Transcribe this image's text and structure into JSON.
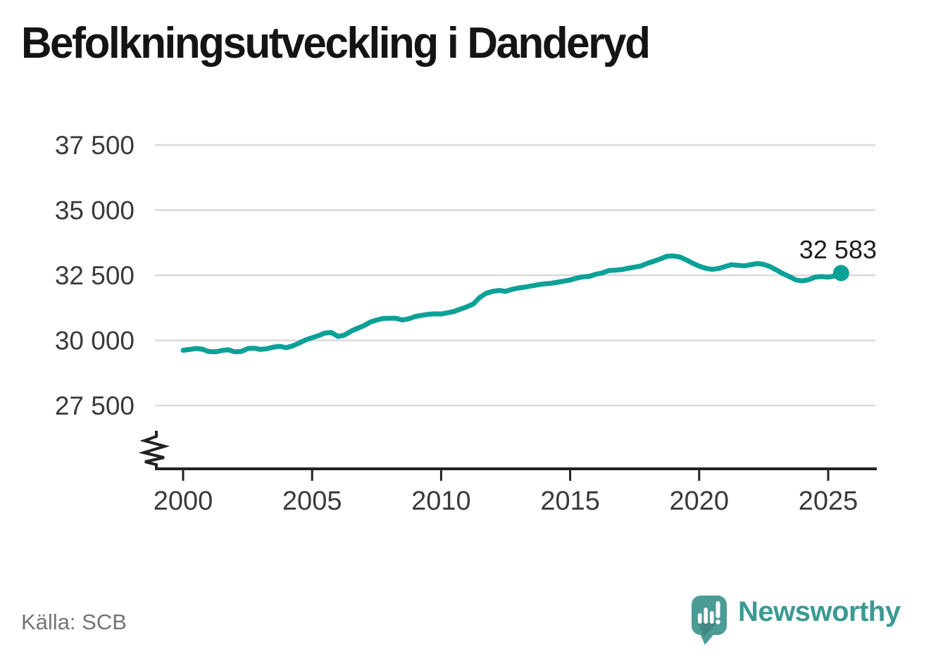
{
  "title": "Befolkningsutveckling i Danderyd",
  "source_label": "Källa: SCB",
  "branding": {
    "wordmark": "Newsworthy",
    "logo_icon": "speech-bubble-with-bar-chart-and-exclamation"
  },
  "colors": {
    "line": "#0ba197",
    "grid": "#d9d9d9",
    "axis": "#222222",
    "tick_label": "#3a3a3a",
    "end_label": "#1c1c1c",
    "logo_bubble": "#4c9c96",
    "logo_text": "#3b9a93"
  },
  "chart_data": {
    "type": "line",
    "title": "Befolkningsutveckling i Danderyd",
    "xlabel": "",
    "ylabel": "",
    "grid": "horizontal",
    "legend": "none",
    "broken_y_axis": true,
    "ylim": [
      26800,
      38200
    ],
    "xlim": [
      1998.9,
      2026.9
    ],
    "yticks": [
      {
        "value": 27500,
        "label": "27 500"
      },
      {
        "value": 30000,
        "label": "30 000"
      },
      {
        "value": 32500,
        "label": "32 500"
      },
      {
        "value": 35000,
        "label": "35 000"
      },
      {
        "value": 37500,
        "label": "37 500"
      }
    ],
    "xticks": [
      {
        "value": 2000,
        "label": "2000"
      },
      {
        "value": 2005,
        "label": "2005"
      },
      {
        "value": 2010,
        "label": "2010"
      },
      {
        "value": 2015,
        "label": "2015"
      },
      {
        "value": 2020,
        "label": "2020"
      },
      {
        "value": 2025,
        "label": "2025"
      }
    ],
    "end_point": {
      "x": 2025.5,
      "value": 32583,
      "label": "32 583"
    },
    "series": [
      {
        "points": [
          [
            2000.0,
            29620
          ],
          [
            2000.25,
            29650
          ],
          [
            2000.5,
            29690
          ],
          [
            2000.75,
            29660
          ],
          [
            2001.0,
            29570
          ],
          [
            2001.25,
            29560
          ],
          [
            2001.5,
            29610
          ],
          [
            2001.75,
            29640
          ],
          [
            2002.0,
            29560
          ],
          [
            2002.25,
            29570
          ],
          [
            2002.5,
            29680
          ],
          [
            2002.75,
            29700
          ],
          [
            2003.0,
            29650
          ],
          [
            2003.25,
            29680
          ],
          [
            2003.5,
            29740
          ],
          [
            2003.75,
            29770
          ],
          [
            2004.0,
            29720
          ],
          [
            2004.25,
            29790
          ],
          [
            2004.5,
            29900
          ],
          [
            2004.75,
            30020
          ],
          [
            2005.0,
            30100
          ],
          [
            2005.25,
            30180
          ],
          [
            2005.5,
            30280
          ],
          [
            2005.75,
            30300
          ],
          [
            2006.0,
            30150
          ],
          [
            2006.25,
            30200
          ],
          [
            2006.5,
            30350
          ],
          [
            2006.75,
            30460
          ],
          [
            2007.0,
            30560
          ],
          [
            2007.25,
            30700
          ],
          [
            2007.5,
            30780
          ],
          [
            2007.75,
            30840
          ],
          [
            2008.0,
            30850
          ],
          [
            2008.25,
            30850
          ],
          [
            2008.5,
            30780
          ],
          [
            2008.75,
            30830
          ],
          [
            2009.0,
            30920
          ],
          [
            2009.25,
            30960
          ],
          [
            2009.5,
            31000
          ],
          [
            2009.75,
            31020
          ],
          [
            2010.0,
            31010
          ],
          [
            2010.25,
            31060
          ],
          [
            2010.5,
            31110
          ],
          [
            2010.75,
            31200
          ],
          [
            2011.0,
            31290
          ],
          [
            2011.25,
            31400
          ],
          [
            2011.5,
            31650
          ],
          [
            2011.75,
            31810
          ],
          [
            2012.0,
            31880
          ],
          [
            2012.25,
            31915
          ],
          [
            2012.5,
            31880
          ],
          [
            2012.75,
            31960
          ],
          [
            2013.0,
            32010
          ],
          [
            2013.25,
            32045
          ],
          [
            2013.5,
            32090
          ],
          [
            2013.75,
            32135
          ],
          [
            2014.0,
            32170
          ],
          [
            2014.25,
            32190
          ],
          [
            2014.5,
            32230
          ],
          [
            2014.75,
            32270
          ],
          [
            2015.0,
            32320
          ],
          [
            2015.25,
            32390
          ],
          [
            2015.5,
            32440
          ],
          [
            2015.75,
            32460
          ],
          [
            2016.0,
            32540
          ],
          [
            2016.25,
            32590
          ],
          [
            2016.5,
            32680
          ],
          [
            2016.75,
            32695
          ],
          [
            2017.0,
            32720
          ],
          [
            2017.25,
            32770
          ],
          [
            2017.5,
            32810
          ],
          [
            2017.75,
            32860
          ],
          [
            2018.0,
            32960
          ],
          [
            2018.25,
            33040
          ],
          [
            2018.5,
            33130
          ],
          [
            2018.75,
            33230
          ],
          [
            2019.0,
            33240
          ],
          [
            2019.25,
            33200
          ],
          [
            2019.5,
            33090
          ],
          [
            2019.75,
            32960
          ],
          [
            2020.0,
            32850
          ],
          [
            2020.25,
            32770
          ],
          [
            2020.5,
            32725
          ],
          [
            2020.75,
            32760
          ],
          [
            2021.0,
            32830
          ],
          [
            2021.25,
            32905
          ],
          [
            2021.5,
            32880
          ],
          [
            2021.75,
            32860
          ],
          [
            2022.0,
            32905
          ],
          [
            2022.25,
            32950
          ],
          [
            2022.5,
            32920
          ],
          [
            2022.75,
            32830
          ],
          [
            2023.0,
            32700
          ],
          [
            2023.25,
            32560
          ],
          [
            2023.5,
            32450
          ],
          [
            2023.75,
            32320
          ],
          [
            2024.0,
            32280
          ],
          [
            2024.25,
            32330
          ],
          [
            2024.5,
            32430
          ],
          [
            2024.75,
            32450
          ],
          [
            2025.0,
            32430
          ],
          [
            2025.25,
            32470
          ],
          [
            2025.5,
            32583
          ]
        ]
      }
    ]
  }
}
